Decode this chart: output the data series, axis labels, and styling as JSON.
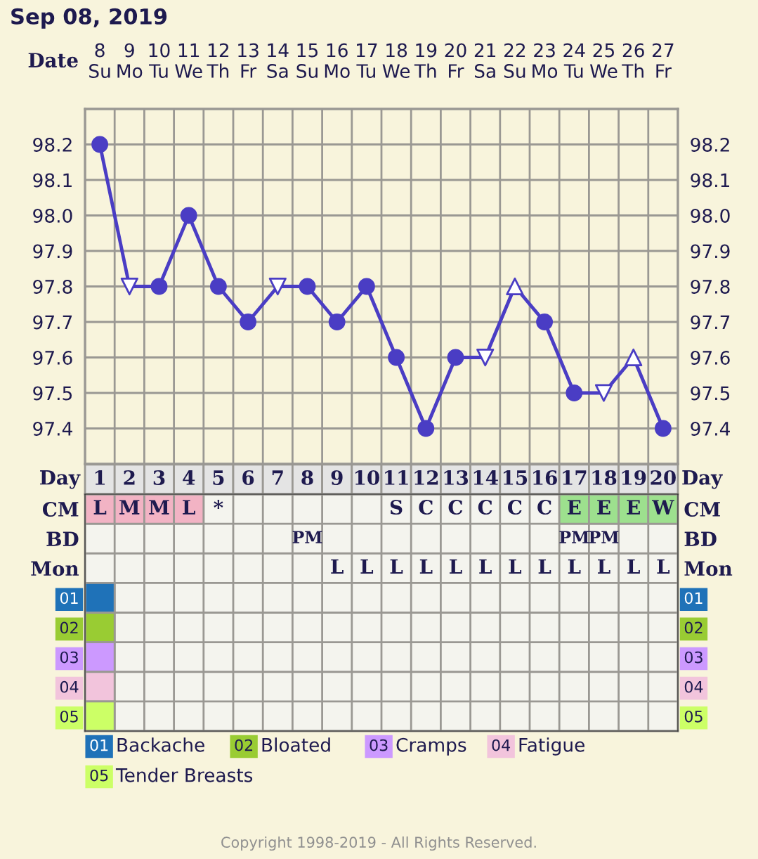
{
  "chart_data": [
    {
      "type": "line",
      "title": "Sep 08, 2019",
      "xlabel": "Date",
      "categories": [
        "8\nSu",
        "9\nMo",
        "10\nTu",
        "11\nWe",
        "12\nTh",
        "13\nFr",
        "14\nSa",
        "15\nSu",
        "16\nMo",
        "17\nTu",
        "18\nWe",
        "19\nTh",
        "20\nFr",
        "21\nSa",
        "22\nSu",
        "23\nMo",
        "24\nTu",
        "25\nWe",
        "26\nTh",
        "27\nFr"
      ],
      "series": [
        {
          "type": "line",
          "color": "#4a3dc4",
          "marker": "none",
          "values": [
            98.2,
            97.8,
            97.8,
            98.0,
            97.8,
            97.7,
            97.8,
            97.8,
            97.7,
            97.8,
            97.6,
            97.4,
            97.6,
            97.6,
            97.8,
            97.7,
            97.5,
            97.5,
            97.6,
            97.4
          ]
        },
        {
          "type": "scatter",
          "color": "#4a3dc4",
          "marker": "circle",
          "values": [
            98.2,
            null,
            97.8,
            98.0,
            97.8,
            97.7,
            null,
            97.8,
            97.7,
            97.8,
            97.6,
            97.4,
            97.6,
            null,
            null,
            97.7,
            97.5,
            null,
            null,
            97.4
          ]
        },
        {
          "type": "scatter",
          "color": "#4a3dc4",
          "marker": "triangle-down",
          "values": [
            null,
            97.8,
            null,
            null,
            null,
            null,
            97.8,
            null,
            null,
            null,
            null,
            null,
            null,
            97.6,
            null,
            null,
            null,
            97.5,
            null,
            null
          ]
        },
        {
          "type": "scatter",
          "color": "#4a3dc4",
          "marker": "triangle",
          "values": [
            null,
            null,
            null,
            null,
            null,
            null,
            null,
            null,
            null,
            null,
            null,
            null,
            null,
            null,
            97.8,
            null,
            null,
            null,
            97.6,
            null
          ]
        }
      ],
      "ylim": [
        97.3,
        98.3
      ],
      "yticks": [
        97.4,
        97.5,
        97.6,
        97.7,
        97.8,
        97.9,
        {
          "value": 98.0,
          "label": "98.0"
        },
        98.1,
        98.2
      ],
      "y2lim": [
        97.3,
        98.3
      ],
      "y2ticks": [
        97.4,
        97.5,
        97.6,
        97.7,
        97.8,
        97.9,
        {
          "value": 98.0,
          "label": "98.0"
        },
        98.1,
        98.2
      ],
      "grid": true,
      "annotations": [
        "Copyright 1998-2019 - All Rights Reserved."
      ]
    },
    {
      "type": "heatmap",
      "xlabel": "Day",
      "categories": [
        "1",
        "2",
        "3",
        "4",
        "5",
        "6",
        "7",
        "8",
        "9",
        "10",
        "11",
        "12",
        "13",
        "14",
        "15",
        "16",
        "17",
        "18",
        "19",
        "20"
      ],
      "y_categories": [
        "CM",
        "BD",
        "Mon",
        "01",
        "02",
        "03",
        "04",
        "05"
      ],
      "y2_categories": [
        "CM",
        "BD",
        "Mon",
        "01",
        "02",
        "03",
        "04",
        "05"
      ],
      "cells": [
        [
          null,
          null,
          null,
          null,
          null,
          null,
          null,
          null,
          null,
          null,
          null,
          null,
          null,
          null,
          null,
          null,
          null,
          null,
          null,
          null
        ],
        [
          null,
          null,
          null,
          null,
          null,
          null,
          null,
          null,
          null,
          null,
          null,
          null,
          null,
          null,
          null,
          null,
          null,
          null,
          null,
          null
        ],
        [
          null,
          null,
          null,
          null,
          null,
          null,
          null,
          null,
          null,
          null,
          null,
          null,
          null,
          null,
          null,
          null,
          null,
          null,
          null,
          null
        ],
        [
          null,
          null,
          null,
          null,
          null,
          null,
          null,
          null,
          null,
          null,
          null,
          null,
          null,
          null,
          null,
          null,
          null,
          null,
          null,
          null
        ],
        [
          null,
          null,
          null,
          null,
          null,
          null,
          null,
          null,
          null,
          null,
          null,
          null,
          null,
          null,
          null,
          null,
          null,
          null,
          null,
          null
        ],
        [
          null,
          null,
          null,
          null,
          null,
          null,
          null,
          null,
          null,
          null,
          null,
          null,
          null,
          null,
          null,
          null,
          null,
          null,
          null,
          null
        ],
        [
          null,
          null,
          null,
          null,
          null,
          null,
          null,
          null,
          null,
          null,
          null,
          null,
          null,
          null,
          null,
          null,
          null,
          null,
          null,
          null
        ],
        [
          null,
          null,
          null,
          null,
          null,
          null,
          null,
          null,
          null,
          null,
          null,
          null,
          null,
          null,
          null,
          null,
          null,
          null,
          null,
          null
        ]
      ],
      "cell_labels": [
        [
          "L",
          "M",
          "M",
          "L",
          "*",
          null,
          null,
          null,
          null,
          null,
          "S",
          "C",
          "C",
          "C",
          "C",
          "C",
          "E",
          "E",
          "E",
          "W"
        ],
        [
          null,
          null,
          null,
          null,
          null,
          null,
          null,
          "PM",
          null,
          null,
          null,
          null,
          null,
          null,
          null,
          null,
          "PM",
          "PM",
          null,
          null
        ],
        [
          null,
          null,
          null,
          null,
          null,
          null,
          null,
          null,
          "L",
          "L",
          "L",
          "L",
          "L",
          "L",
          "L",
          "L",
          "L",
          "L",
          "L",
          "L"
        ],
        [
          null,
          null,
          null,
          null,
          null,
          null,
          null,
          null,
          null,
          null,
          null,
          null,
          null,
          null,
          null,
          null,
          null,
          null,
          null,
          null
        ],
        [
          null,
          null,
          null,
          null,
          null,
          null,
          null,
          null,
          null,
          null,
          null,
          null,
          null,
          null,
          null,
          null,
          null,
          null,
          null,
          null
        ],
        [
          null,
          null,
          null,
          null,
          null,
          null,
          null,
          null,
          null,
          null,
          null,
          null,
          null,
          null,
          null,
          null,
          null,
          null,
          null,
          null
        ],
        [
          null,
          null,
          null,
          null,
          null,
          null,
          null,
          null,
          null,
          null,
          null,
          null,
          null,
          null,
          null,
          null,
          null,
          null,
          null,
          null
        ],
        [
          null,
          null,
          null,
          null,
          null,
          null,
          null,
          null,
          null,
          null,
          null,
          null,
          null,
          null,
          null,
          null,
          null,
          null,
          null,
          null
        ]
      ],
      "colors": [
        [
          "#f2b3c4",
          "#f2b3c4",
          "#f2b3c4",
          "#f2b3c4",
          null,
          null,
          null,
          null,
          null,
          null,
          null,
          null,
          null,
          null,
          null,
          null,
          "#9de08e",
          "#9de08e",
          "#9de08e",
          "#9de08e"
        ],
        [
          null,
          null,
          null,
          null,
          null,
          null,
          null,
          null,
          null,
          null,
          null,
          null,
          null,
          null,
          null,
          null,
          null,
          null,
          null,
          null
        ],
        [
          null,
          null,
          null,
          null,
          null,
          null,
          null,
          null,
          null,
          null,
          null,
          null,
          null,
          null,
          null,
          null,
          null,
          null,
          null,
          null
        ],
        [
          "#1f72b8",
          null,
          null,
          null,
          null,
          null,
          null,
          null,
          null,
          null,
          null,
          null,
          null,
          null,
          null,
          null,
          null,
          null,
          null,
          null
        ],
        [
          "#99cc33",
          null,
          null,
          null,
          null,
          null,
          null,
          null,
          null,
          null,
          null,
          null,
          null,
          null,
          null,
          null,
          null,
          null,
          null,
          null
        ],
        [
          "#cc99ff",
          null,
          null,
          null,
          null,
          null,
          null,
          null,
          null,
          null,
          null,
          null,
          null,
          null,
          null,
          null,
          null,
          null,
          null,
          null
        ],
        [
          "#f2c4dc",
          null,
          null,
          null,
          null,
          null,
          null,
          null,
          null,
          null,
          null,
          null,
          null,
          null,
          null,
          null,
          null,
          null,
          null,
          null
        ],
        [
          "#ccff66",
          null,
          null,
          null,
          null,
          null,
          null,
          null,
          null,
          null,
          null,
          null,
          null,
          null,
          null,
          null,
          null,
          null,
          null,
          null
        ]
      ],
      "annotations": [
        "Backache",
        "Bloated",
        "Cramps",
        "Fatigue",
        "Tender Breasts"
      ]
    }
  ]
}
